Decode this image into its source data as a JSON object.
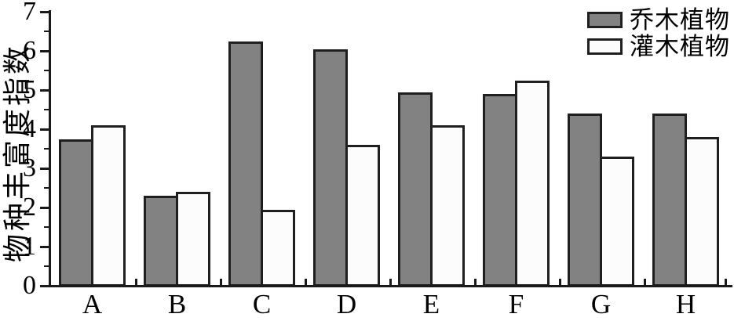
{
  "chart_data": {
    "type": "bar",
    "title": "",
    "xlabel": "",
    "ylabel": "物种丰富度指数",
    "categories": [
      "A",
      "B",
      "C",
      "D",
      "E",
      "F",
      "G",
      "H"
    ],
    "series": [
      {
        "name": "乔木植物",
        "color": "#828282",
        "values": [
          3.75,
          2.3,
          6.25,
          6.05,
          4.95,
          4.9,
          4.4,
          4.4
        ]
      },
      {
        "name": "灌木植物",
        "color": "#fcfcfc",
        "values": [
          4.1,
          2.4,
          1.95,
          3.6,
          4.1,
          5.25,
          3.3,
          3.8
        ]
      }
    ],
    "ylim": [
      0,
      7
    ],
    "y_major_ticks": [
      0,
      1,
      2,
      3,
      4,
      5,
      6,
      7
    ],
    "y_minor_step": 0.5,
    "grid": false,
    "legend_position": "top-right",
    "bar_border_color": "#1f1f1f",
    "axis_color": "#1a1a1a",
    "text_color": "#000000",
    "background_color": "#ffffff"
  }
}
